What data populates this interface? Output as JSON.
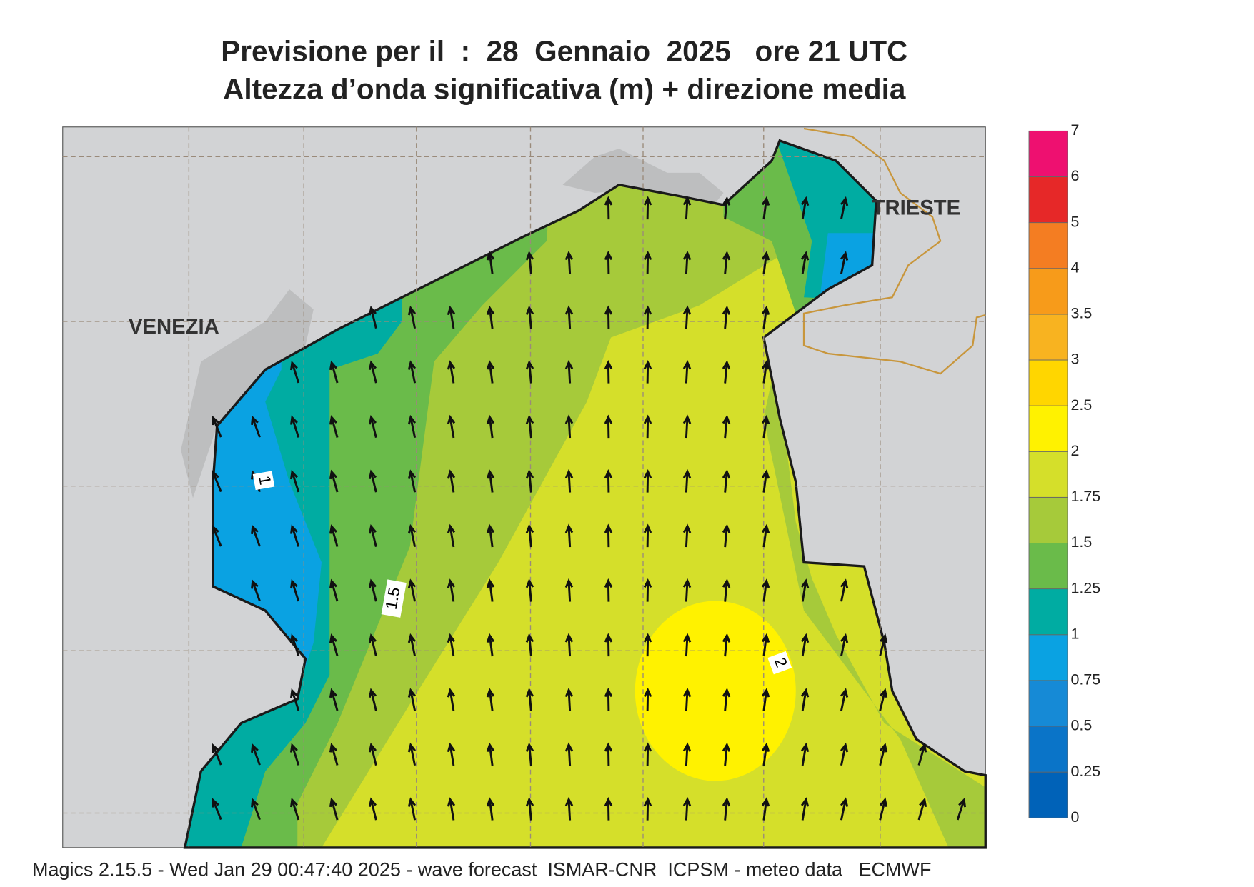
{
  "header": {
    "title": "Previsione per il  :  28  Gennaio  2025   ore 21 UTC",
    "subtitle": "Altezza d’onda significativa (m) + direzione media"
  },
  "places": [
    "VENEZIA",
    "TRIESTE"
  ],
  "contour_labels": [
    "1",
    "1.5",
    "2"
  ],
  "colorbar": {
    "levels": [
      0,
      0.25,
      0.5,
      0.75,
      1,
      1.25,
      1.5,
      1.75,
      2,
      2.5,
      3,
      3.5,
      4,
      5,
      6,
      7
    ],
    "colors": [
      "#0062b8",
      "#0a74c8",
      "#168ad6",
      "#0aa2e2",
      "#00aca2",
      "#6abb4a",
      "#a6ca3a",
      "#d5df2a",
      "#fff200",
      "#ffd600",
      "#f8b320",
      "#f79b1a",
      "#f47d22",
      "#e62828",
      "#ee1070"
    ]
  },
  "footer": "Magics 2.15.5 - Wed Jan 29 00:47:40 2025 - wave forecast  ISMAR-CNR  ICPSM - meteo data   ECMWF"
}
